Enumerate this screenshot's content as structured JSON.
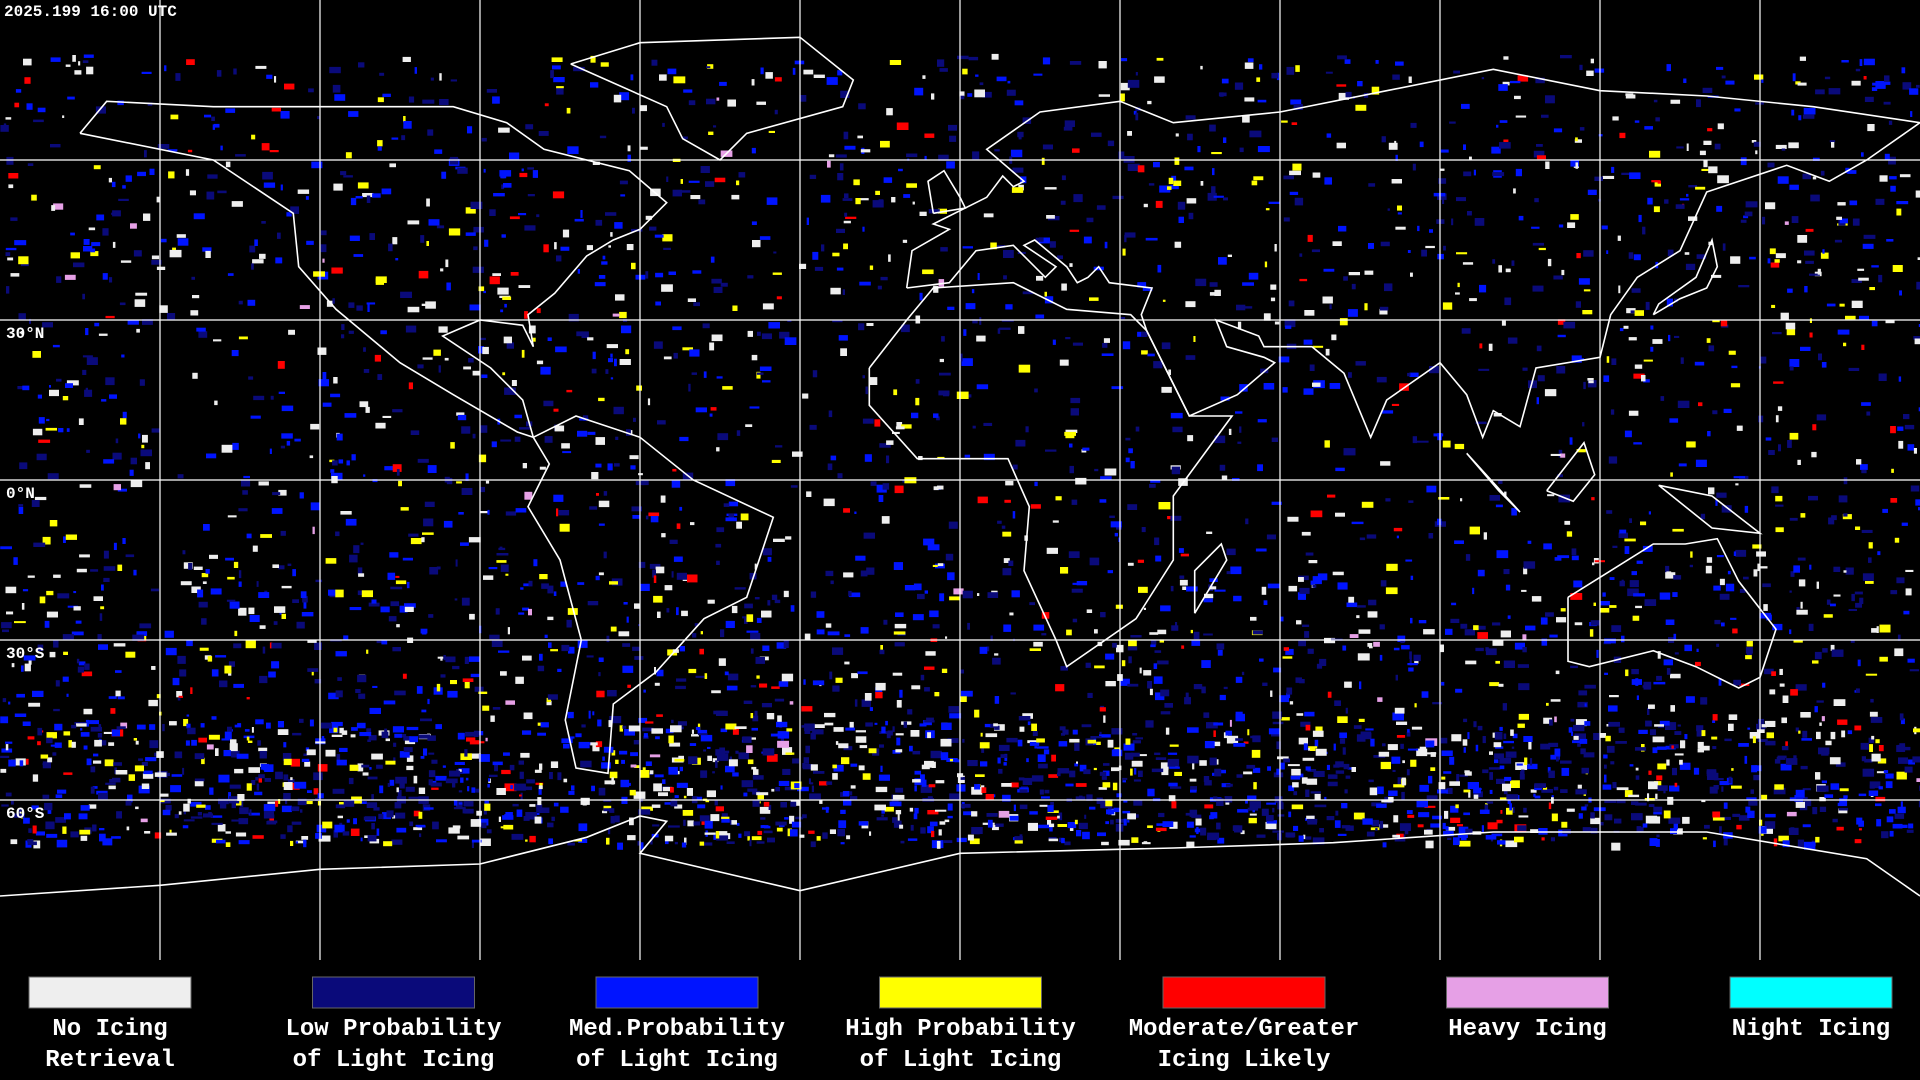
{
  "header": {
    "timestamp": "2025.199 16:00 UTC"
  },
  "map": {
    "latitude_labels": [
      "30°N",
      "0°N",
      "30°S",
      "60°S"
    ]
  },
  "legend": {
    "items": [
      {
        "label_lines": [
          "No Icing",
          "Retrieval"
        ],
        "color": "#eeeeee"
      },
      {
        "label_lines": [
          "Low Probability",
          "of Light Icing"
        ],
        "color": "#0a0a7a"
      },
      {
        "label_lines": [
          "Med.Probability",
          "of Light Icing"
        ],
        "color": "#0014ff"
      },
      {
        "label_lines": [
          "High Probability",
          "of Light Icing"
        ],
        "color": "#ffff00"
      },
      {
        "label_lines": [
          "Moderate/Greater",
          "Icing Likely"
        ],
        "color": "#ff0000"
      },
      {
        "label_lines": [
          "Heavy Icing"
        ],
        "color": "#e6a0e6"
      },
      {
        "label_lines": [
          "Night Icing"
        ],
        "color": "#00ffff"
      }
    ]
  }
}
